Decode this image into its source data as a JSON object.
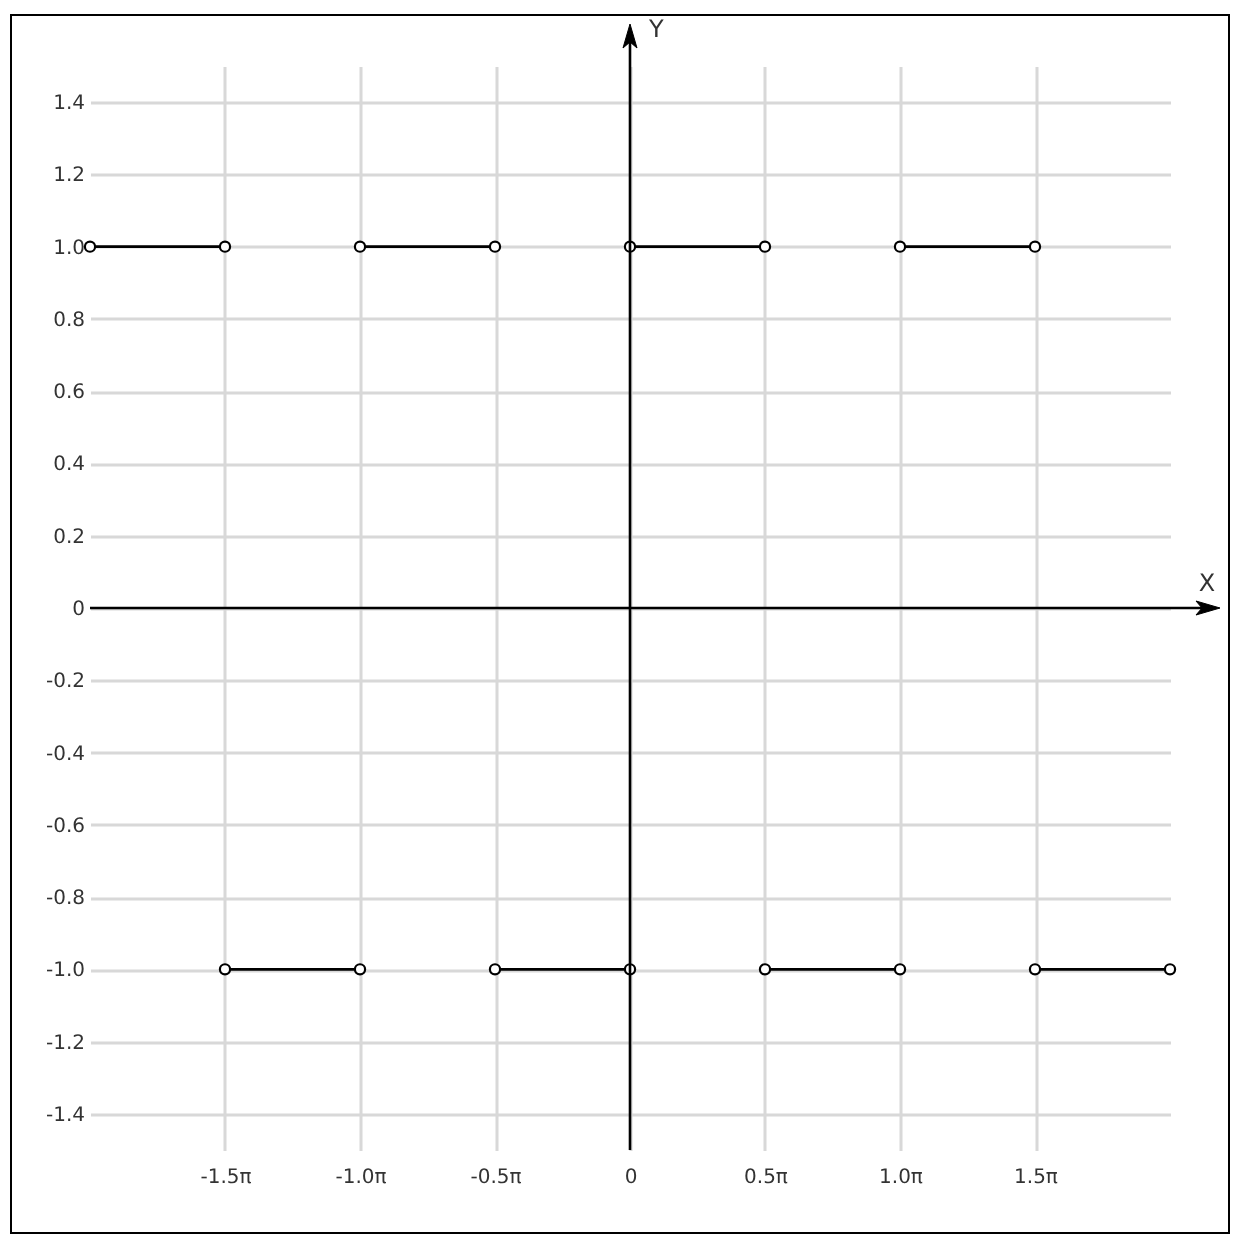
{
  "chart_data": {
    "type": "line",
    "xlabel": "X",
    "ylabel": "Y",
    "xlim": [
      -6.283185,
      6.283185
    ],
    "ylim": [
      -1.5,
      1.5
    ],
    "xticks": [
      {
        "value": -4.712389,
        "label": "-1.5π"
      },
      {
        "value": -3.141593,
        "label": "-1.0π"
      },
      {
        "value": -1.570796,
        "label": "-0.5π"
      },
      0,
      {
        "value": 1.570796,
        "label": "0.5π"
      },
      {
        "value": 3.141593,
        "label": "1.0π"
      },
      {
        "value": 4.712389,
        "label": "1.5π"
      }
    ],
    "yticks": [
      -1.4,
      -1.2,
      {
        "value": -1,
        "label": "-1.0"
      },
      -0.8,
      -0.6,
      -0.4,
      -0.2,
      0,
      0.2,
      0.4,
      0.6,
      0.8,
      {
        "value": 1,
        "label": "1.0"
      },
      1.2,
      1.4
    ],
    "grid": true,
    "marker": "circle",
    "series": [
      {
        "color": "#000000",
        "x": [
          -6.283185,
          -4.712389
        ],
        "values": [
          1,
          1
        ]
      },
      {
        "color": "#000000",
        "x": [
          -4.712389,
          -3.141593
        ],
        "values": [
          -1,
          -1
        ]
      },
      {
        "color": "#000000",
        "x": [
          -3.141593,
          -1.570796
        ],
        "values": [
          1,
          1
        ]
      },
      {
        "color": "#000000",
        "x": [
          -1.570796,
          0
        ],
        "values": [
          -1,
          -1
        ]
      },
      {
        "color": "#000000",
        "x": [
          0,
          1.570796
        ],
        "values": [
          1,
          1
        ]
      },
      {
        "color": "#000000",
        "x": [
          1.570796,
          3.141593
        ],
        "values": [
          -1,
          -1
        ]
      },
      {
        "color": "#000000",
        "x": [
          3.141593,
          4.712389
        ],
        "values": [
          1,
          1
        ]
      },
      {
        "color": "#000000",
        "x": [
          4.712389,
          6.283185
        ],
        "values": [
          -1,
          -1
        ]
      }
    ]
  }
}
